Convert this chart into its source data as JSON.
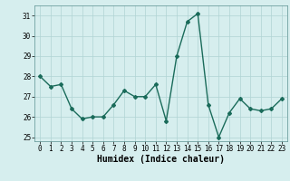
{
  "x": [
    0,
    1,
    2,
    3,
    4,
    5,
    6,
    7,
    8,
    9,
    10,
    11,
    12,
    13,
    14,
    15,
    16,
    17,
    18,
    19,
    20,
    21,
    22,
    23
  ],
  "y": [
    28.0,
    27.5,
    27.6,
    26.4,
    25.9,
    26.0,
    26.0,
    26.6,
    27.3,
    27.0,
    27.0,
    27.6,
    25.8,
    29.0,
    30.7,
    31.1,
    26.6,
    25.0,
    26.2,
    26.9,
    26.4,
    26.3,
    26.4,
    26.9
  ],
  "line_color": "#1a6b5a",
  "marker": "D",
  "marker_size": 2,
  "bg_color": "#d6eeee",
  "grid_color": "#b0d4d4",
  "xlabel": "Humidex (Indice chaleur)",
  "ylim": [
    24.8,
    31.5
  ],
  "xlim": [
    -0.5,
    23.5
  ],
  "yticks": [
    25,
    26,
    27,
    28,
    29,
    30,
    31
  ],
  "xticks": [
    0,
    1,
    2,
    3,
    4,
    5,
    6,
    7,
    8,
    9,
    10,
    11,
    12,
    13,
    14,
    15,
    16,
    17,
    18,
    19,
    20,
    21,
    22,
    23
  ],
  "tick_fontsize": 5.5,
  "xlabel_fontsize": 7.0,
  "line_width": 1.0
}
